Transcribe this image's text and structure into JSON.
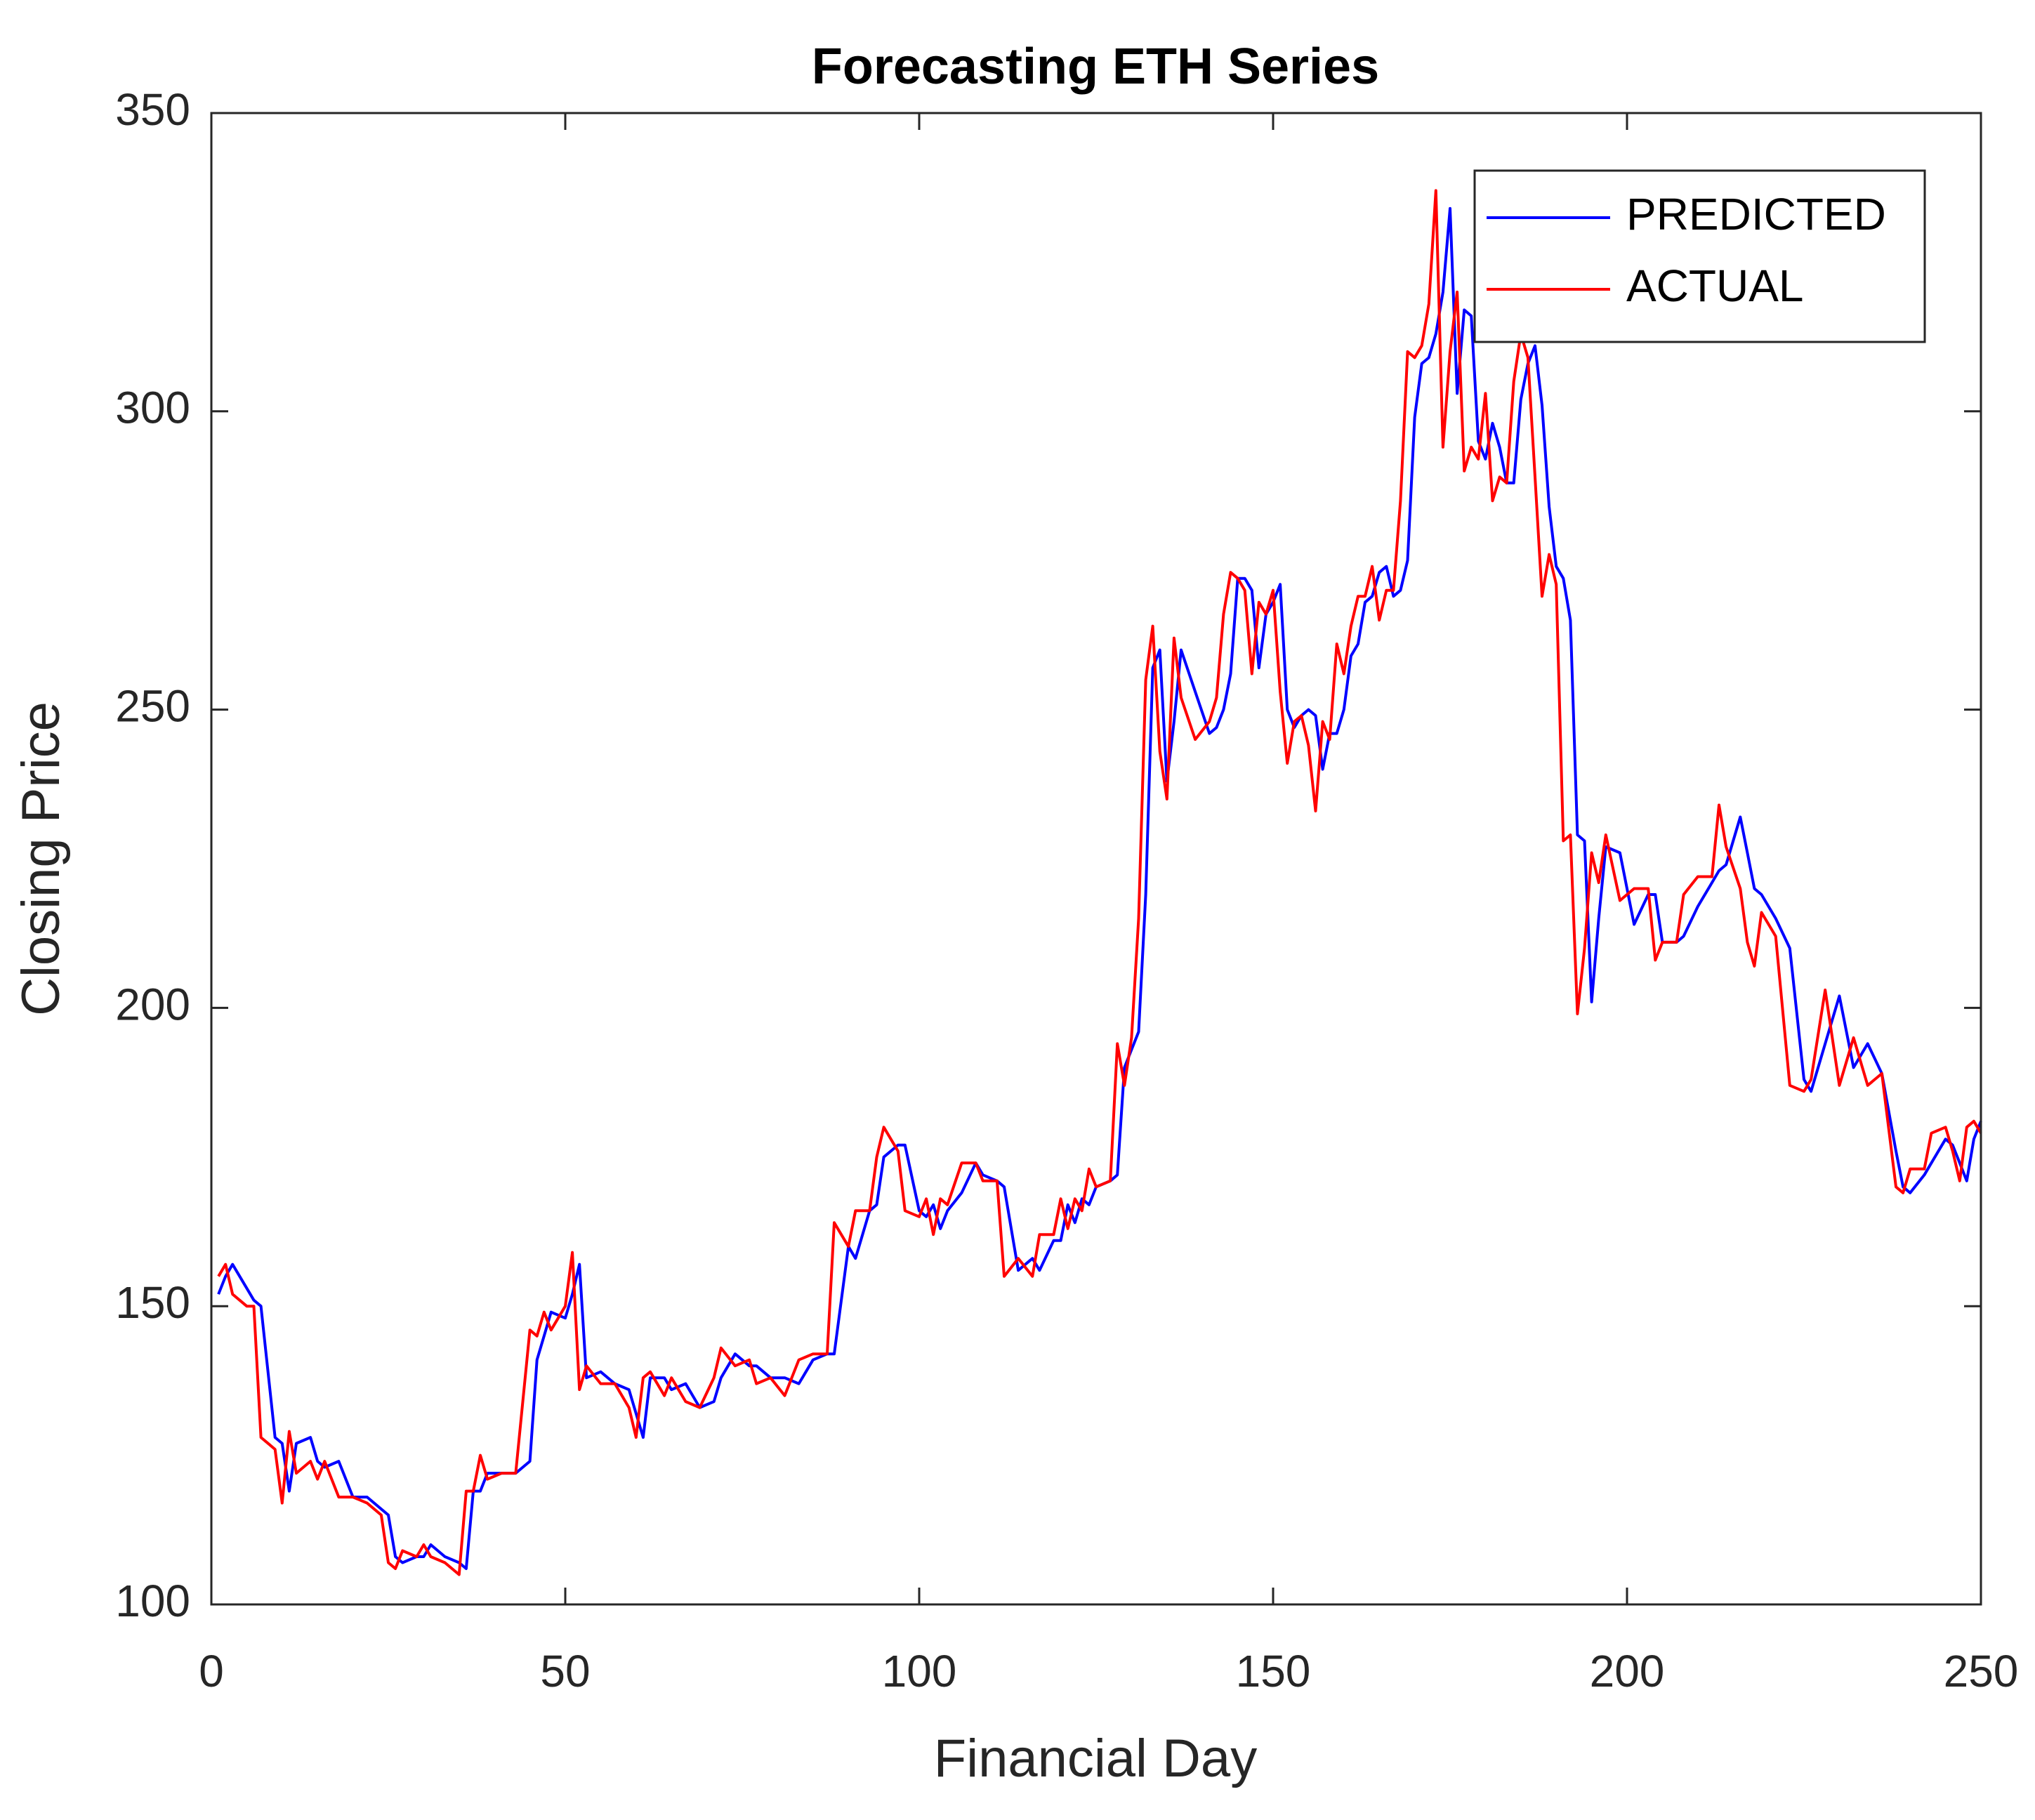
{
  "chart_data": {
    "type": "line",
    "title": "Forecasting ETH Series",
    "x_label": "Financial Day",
    "y_label": "Closing Price",
    "xlim": [
      0,
      250
    ],
    "xticks": [
      0,
      50,
      100,
      150,
      200,
      250
    ],
    "ylim": [
      100,
      350
    ],
    "yticks": [
      100,
      150,
      200,
      250,
      300,
      350
    ],
    "grid": false,
    "legend": "upper right",
    "x": [
      1,
      2,
      3,
      5,
      6,
      7,
      9,
      10,
      11,
      12,
      14,
      15,
      16,
      18,
      20,
      22,
      24,
      25,
      26,
      27,
      29,
      30,
      31,
      33,
      35,
      36,
      37,
      38,
      39,
      41,
      43,
      45,
      46,
      47,
      48,
      50,
      51,
      52,
      53,
      55,
      57,
      59,
      60,
      61,
      62,
      64,
      65,
      67,
      69,
      71,
      72,
      74,
      76,
      77,
      79,
      81,
      83,
      85,
      87,
      88,
      90,
      91,
      93,
      94,
      95,
      97,
      98,
      100,
      101,
      102,
      103,
      104,
      106,
      108,
      109,
      111,
      112,
      114,
      116,
      117,
      119,
      120,
      121,
      122,
      123,
      124,
      125,
      127,
      128,
      129,
      130,
      131,
      132,
      133,
      134,
      135,
      136,
      137,
      139,
      141,
      142,
      143,
      144,
      145,
      146,
      147,
      148,
      149,
      150,
      151,
      152,
      153,
      154,
      155,
      156,
      157,
      158,
      159,
      160,
      161,
      162,
      163,
      164,
      165,
      166,
      167,
      168,
      169,
      170,
      171,
      172,
      173,
      174,
      175,
      176,
      177,
      178,
      179,
      180,
      181,
      182,
      183,
      184,
      185,
      186,
      187,
      188,
      189,
      190,
      191,
      192,
      193,
      194,
      195,
      196,
      197,
      199,
      201,
      203,
      204,
      205,
      207,
      208,
      210,
      212,
      213,
      214,
      216,
      217,
      218,
      219,
      221,
      223,
      225,
      226,
      228,
      230,
      232,
      234,
      236,
      238,
      239,
      240,
      242,
      243,
      245,
      246,
      247,
      248,
      249,
      250
    ],
    "series": [
      {
        "name": "PREDICTED",
        "color": "#0000ff",
        "values": [
          152,
          155,
          157,
          153,
          151,
          150,
          128,
          127,
          119,
          127,
          128,
          124,
          123,
          124,
          118,
          118,
          116,
          115,
          108,
          107,
          108,
          108,
          110,
          108,
          107,
          106,
          119,
          119,
          122,
          122,
          122,
          124,
          141,
          145,
          149,
          148,
          152,
          157,
          138,
          139,
          137,
          136,
          132,
          128,
          138,
          138,
          136,
          137,
          133,
          134,
          138,
          142,
          140,
          140,
          138,
          138,
          137,
          141,
          142,
          142,
          160,
          158,
          166,
          167,
          175,
          177,
          177,
          166,
          165,
          167,
          163,
          166,
          169,
          174,
          172,
          171,
          170,
          156,
          158,
          156,
          161,
          161,
          167,
          164,
          168,
          167,
          170,
          171,
          172,
          190,
          193,
          196,
          219,
          257,
          260,
          238,
          248,
          260,
          253,
          246,
          247,
          250,
          256,
          272,
          272,
          270,
          257,
          266,
          268,
          271,
          250,
          247,
          249,
          250,
          249,
          240,
          246,
          246,
          250,
          259,
          261,
          268,
          269,
          273,
          274,
          269,
          270,
          275,
          299,
          308,
          309,
          313,
          320,
          334,
          303,
          317,
          316,
          295,
          292,
          298,
          294,
          288,
          288,
          302,
          308,
          311,
          301,
          284,
          274,
          272,
          265,
          229,
          228,
          201,
          215,
          227,
          226,
          214,
          219,
          219,
          211,
          211,
          212,
          217,
          221,
          223,
          224,
          232,
          226,
          220,
          219,
          215,
          210,
          188,
          186,
          194,
          202,
          190,
          194,
          189,
          176,
          170,
          169,
          172,
          174,
          178,
          177,
          174,
          171,
          178,
          181
        ]
      },
      {
        "name": "ACTUAL",
        "color": "#ff0000",
        "values": [
          155,
          157,
          152,
          150,
          150,
          128,
          126,
          117,
          129,
          122,
          124,
          121,
          124,
          118,
          118,
          117,
          115,
          107,
          106,
          109,
          108,
          110,
          108,
          107,
          105,
          119,
          119,
          125,
          121,
          122,
          122,
          146,
          145,
          149,
          146,
          150,
          159,
          136,
          140,
          137,
          137,
          133,
          128,
          138,
          139,
          135,
          138,
          134,
          133,
          138,
          143,
          140,
          141,
          137,
          138,
          135,
          141,
          142,
          142,
          164,
          160,
          166,
          166,
          175,
          180,
          176,
          166,
          165,
          168,
          162,
          168,
          167,
          174,
          174,
          171,
          171,
          155,
          158,
          155,
          162,
          162,
          168,
          163,
          168,
          166,
          173,
          170,
          171,
          194,
          187,
          195,
          215,
          255,
          264,
          243,
          235,
          262,
          252,
          245,
          248,
          252,
          266,
          273,
          272,
          270,
          256,
          268,
          266,
          270,
          253,
          241,
          248,
          249,
          244,
          233,
          248,
          245,
          261,
          256,
          264,
          269,
          269,
          274,
          265,
          270,
          270,
          285,
          310,
          309,
          311,
          318,
          337,
          294,
          310,
          320,
          290,
          294,
          292,
          303,
          285,
          289,
          288,
          305,
          313,
          309,
          289,
          269,
          276,
          271,
          228,
          229,
          199,
          210,
          226,
          221,
          229,
          218,
          220,
          220,
          208,
          211,
          211,
          219,
          222,
          222,
          234,
          227,
          220,
          211,
          207,
          216,
          212,
          187,
          186,
          188,
          203,
          187,
          195,
          187,
          189,
          170,
          169,
          173,
          173,
          179,
          180,
          176,
          171,
          180,
          181,
          179
        ]
      }
    ]
  }
}
